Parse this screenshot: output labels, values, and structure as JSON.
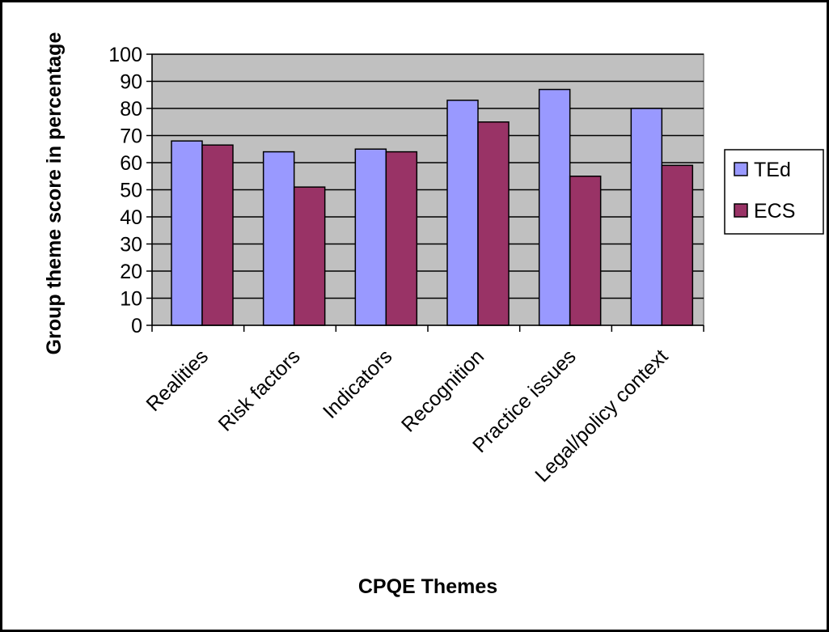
{
  "chart_data": {
    "type": "bar",
    "title": "",
    "xlabel": "CPQE Themes",
    "ylabel": "Group theme score in percentage",
    "categories": [
      "Realities",
      "Risk factors",
      "Indicators",
      "Recognition",
      "Practice issues",
      "Legal/policy context"
    ],
    "series": [
      {
        "name": "TEd",
        "values": [
          68,
          64,
          65,
          83,
          87,
          80
        ],
        "color": "#9999ff"
      },
      {
        "name": "ECS",
        "values": [
          66.5,
          51,
          64,
          75,
          55,
          59
        ],
        "color": "#993366"
      }
    ],
    "ylim": [
      0,
      100
    ],
    "yticks": [
      0,
      10,
      20,
      30,
      40,
      50,
      60,
      70,
      80,
      90,
      100
    ],
    "grid": true,
    "plot_background": "#c0c0c0",
    "legend_position": "right"
  }
}
